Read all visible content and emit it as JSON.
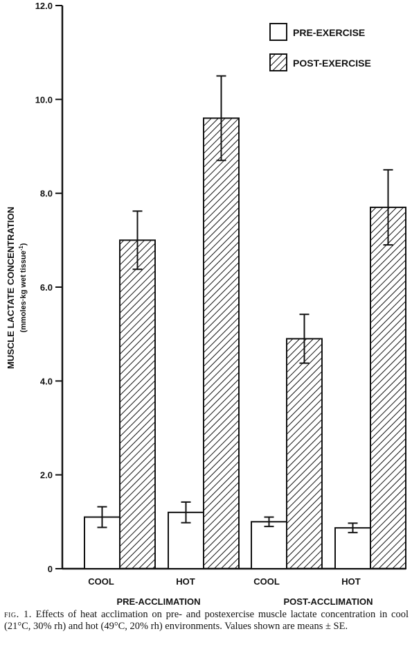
{
  "chart_data": {
    "type": "bar",
    "ylabel": "MUSCLE LACTATE CONCENTRATION",
    "ylabel_units_pre": "(mmoles·kg wet tissue",
    "ylabel_units_sup": "-1",
    "ylabel_units_post": ")",
    "ylim": [
      0,
      12
    ],
    "yticks": [
      "0",
      "2.0",
      "4.0",
      "6.0",
      "8.0",
      "10.0",
      "12.0"
    ],
    "ytick_values": [
      0,
      2,
      4,
      6,
      8,
      10,
      12
    ],
    "groups": [
      {
        "label": "PRE-ACCLIMATION",
        "categories": [
          "COOL",
          "HOT"
        ]
      },
      {
        "label": "POST-ACCLIMATION",
        "categories": [
          "COOL",
          "HOT"
        ]
      }
    ],
    "categories": [
      "COOL",
      "HOT",
      "COOL",
      "HOT"
    ],
    "series": [
      {
        "name": "PRE-EXERCISE",
        "pattern": "open",
        "values": [
          1.1,
          1.2,
          1.0,
          0.87
        ],
        "errors": [
          0.22,
          0.22,
          0.1,
          0.1
        ]
      },
      {
        "name": "POST-EXERCISE",
        "pattern": "hatched",
        "values": [
          7.0,
          9.6,
          4.9,
          7.7
        ],
        "errors": [
          0.62,
          0.9,
          0.52,
          0.8
        ]
      }
    ],
    "legend_position": "top-right",
    "grid": false
  },
  "caption": {
    "fig_label": "fig. 1.",
    "text": "Effects of heat acclimation on pre- and postexercise muscle lactate concentration in cool (21°C, 30% rh) and hot (49°C, 20% rh) environments. Values shown are means ± SE."
  }
}
